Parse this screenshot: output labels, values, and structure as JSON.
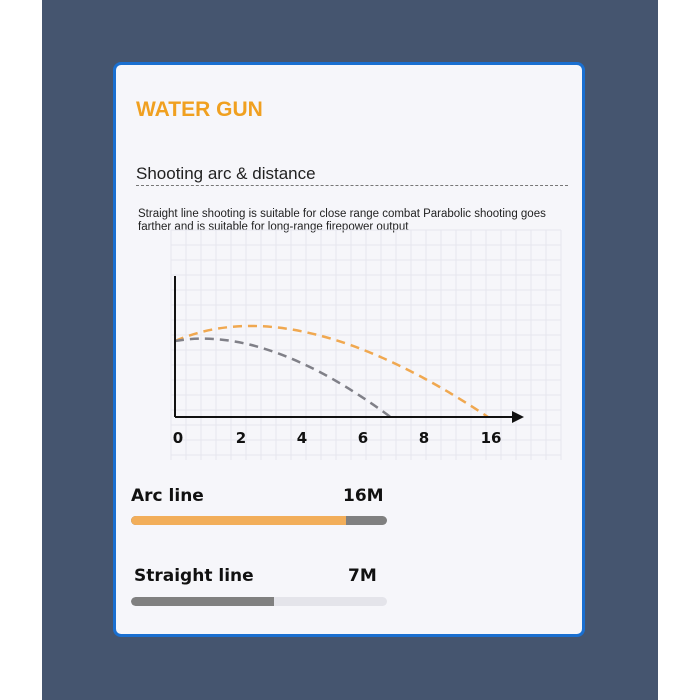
{
  "title": "WATER GUN",
  "subtitle": "Shooting arc & distance",
  "description": "Straight line shooting is suitable for close range combat Parabolic shooting goes farther and is suitable for long-range firepower output",
  "chart_data": {
    "type": "line",
    "x_tick_labels": [
      "0",
      "2",
      "4",
      "6",
      "8",
      "16"
    ],
    "grid": true,
    "series": [
      {
        "color": "#f0a850",
        "range": 16
      },
      {
        "color": "#808088",
        "range": 7
      }
    ]
  },
  "stats": [
    {
      "label": "Arc line",
      "value": "16M",
      "fill_percent": 84,
      "fill_color": "#f2ae5a",
      "track_color": "#808080"
    },
    {
      "label": "Straight line",
      "value": "7M",
      "fill_percent": 56,
      "fill_color": "#808080",
      "track_color": "#e4e4ea"
    }
  ]
}
